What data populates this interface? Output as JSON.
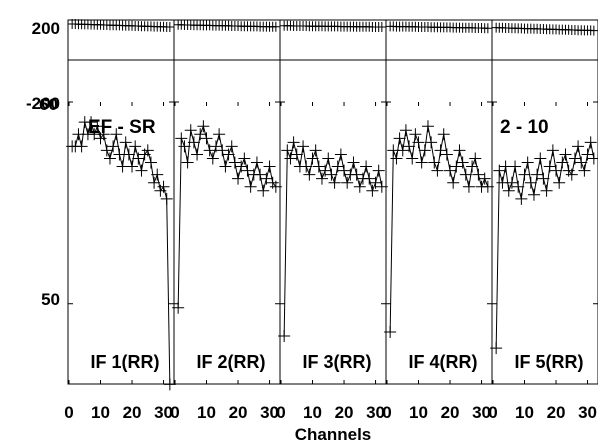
{
  "chart_data": {
    "type": "line",
    "title": "",
    "xlabel": "Channels",
    "x_ticks": [
      0,
      10,
      20,
      30
    ],
    "x_tick_labels": [
      "0",
      "10",
      "20",
      "30"
    ],
    "phase_ylim": [
      -200,
      200
    ],
    "phase_tick_labels": [
      "200",
      "-200"
    ],
    "amp_ylim": [
      35,
      100
    ],
    "amp_tick_labels": [
      "60",
      "50"
    ],
    "annotations": {
      "left": "EF - SR",
      "right": "2 - 10"
    },
    "panels": [
      {
        "label": "IF 1(RR)",
        "phase": [
          180,
          180,
          179,
          179,
          178,
          178,
          177,
          177,
          176,
          176,
          175,
          175,
          174,
          174,
          173,
          173,
          172,
          172,
          171,
          171,
          170,
          170,
          169,
          169,
          168,
          168,
          167,
          167,
          166,
          166,
          165,
          165
        ],
        "amplitude": [
          89,
          89,
          92,
          89,
          95,
          92,
          95,
          92,
          94,
          91,
          92,
          88,
          86,
          89,
          92,
          87,
          84,
          90,
          87,
          84,
          89,
          86,
          83,
          87,
          88,
          85,
          80,
          82,
          78,
          79,
          76,
          30
        ]
      },
      {
        "label": "IF 2(RR)",
        "phase": [
          176,
          176,
          175,
          175,
          175,
          174,
          174,
          174,
          173,
          173,
          173,
          172,
          172,
          172,
          171,
          171,
          171,
          170,
          170,
          170,
          169,
          169,
          169,
          168,
          168,
          168,
          167,
          167,
          167,
          166,
          166,
          166
        ],
        "amplitude": [
          49,
          91,
          89,
          85,
          93,
          90,
          87,
          92,
          94,
          91,
          88,
          86,
          89,
          92,
          88,
          84,
          87,
          89,
          85,
          81,
          84,
          86,
          83,
          79,
          82,
          85,
          82,
          78,
          81,
          84,
          80,
          79
        ]
      },
      {
        "label": "IF 3(RR)",
        "phase": [
          171,
          171,
          171,
          170,
          170,
          170,
          170,
          170,
          169,
          169,
          169,
          169,
          169,
          168,
          168,
          168,
          168,
          168,
          167,
          167,
          167,
          167,
          167,
          166,
          166,
          166,
          166,
          166,
          165,
          165,
          165,
          165
        ],
        "amplitude": [
          42,
          88,
          86,
          90,
          87,
          84,
          89,
          84,
          82,
          86,
          88,
          84,
          81,
          83,
          86,
          82,
          80,
          84,
          87,
          83,
          80,
          82,
          85,
          82,
          79,
          81,
          84,
          81,
          78,
          80,
          83,
          79
        ]
      },
      {
        "label": "IF 4(RR)",
        "phase": [
          168,
          168,
          167,
          167,
          167,
          167,
          166,
          166,
          166,
          165,
          165,
          165,
          165,
          164,
          164,
          164,
          163,
          163,
          163,
          163,
          162,
          162,
          162,
          161,
          161,
          161,
          161,
          160,
          160,
          160,
          159,
          159
        ],
        "amplitude": [
          43,
          88,
          86,
          91,
          88,
          93,
          89,
          86,
          92,
          90,
          85,
          88,
          94,
          90,
          85,
          83,
          88,
          92,
          87,
          83,
          80,
          84,
          88,
          85,
          82,
          79,
          84,
          86,
          82,
          79,
          81,
          79
        ]
      },
      {
        "label": "IF 5(RR)",
        "phase": [
          162,
          161,
          161,
          160,
          160,
          159,
          159,
          158,
          158,
          157,
          157,
          157,
          156,
          156,
          155,
          155,
          154,
          154,
          153,
          153,
          152,
          152,
          151,
          151,
          150,
          150,
          149,
          149,
          148,
          148,
          148,
          147
        ],
        "amplitude": [
          39,
          83,
          80,
          84,
          78,
          80,
          84,
          79,
          76,
          82,
          85,
          80,
          77,
          82,
          86,
          81,
          78,
          84,
          88,
          83,
          80,
          85,
          87,
          83,
          82,
          86,
          89,
          85,
          83,
          87,
          90,
          86
        ]
      }
    ]
  }
}
